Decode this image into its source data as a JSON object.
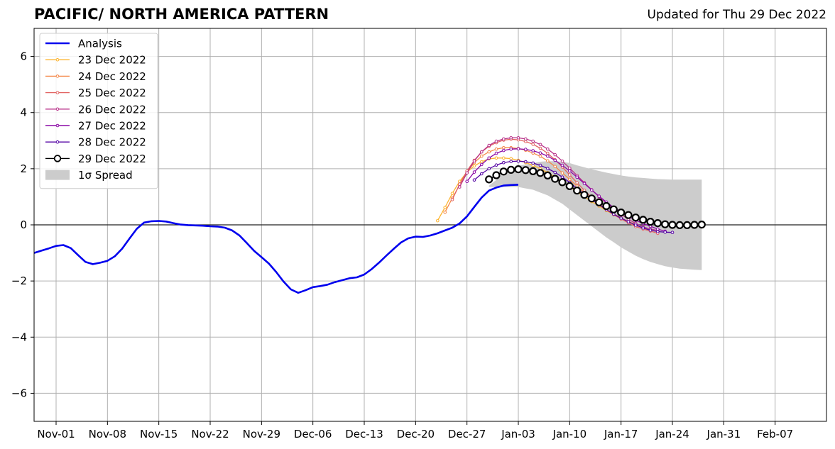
{
  "chart_data": {
    "type": "line",
    "title": "PACIFIC/ NORTH AMERICA PATTERN",
    "subtitle": "Updated for Thu 29 Dec 2022",
    "xlabel": "",
    "ylabel": "",
    "xlim": [
      "2022-10-29",
      "2023-02-14"
    ],
    "ylim": [
      -7,
      7
    ],
    "yticks": [
      -6,
      -4,
      -2,
      0,
      2,
      4,
      6
    ],
    "ytick_labels": [
      "−6",
      "−4",
      "−2",
      "0",
      "2",
      "4",
      "6"
    ],
    "xticks": [
      "2022-11-01",
      "2022-11-08",
      "2022-11-15",
      "2022-11-22",
      "2022-11-29",
      "2022-12-06",
      "2022-12-13",
      "2022-12-20",
      "2022-12-27",
      "2023-01-03",
      "2023-01-10",
      "2023-01-17",
      "2023-01-24",
      "2023-01-31",
      "2023-02-07"
    ],
    "xtick_labels": [
      "Nov-01",
      "Nov-08",
      "Nov-15",
      "Nov-22",
      "Nov-29",
      "Dec-06",
      "Dec-13",
      "Dec-20",
      "Dec-27",
      "Jan-03",
      "Jan-10",
      "Jan-17",
      "Jan-24",
      "Jan-31",
      "Feb-07"
    ],
    "grid": true,
    "legend_position": "top-left",
    "zero_line": 0,
    "analysis": {
      "name": "Analysis",
      "color": "#0000ee",
      "start": "2022-10-29",
      "values": [
        -1.0,
        -0.92,
        -0.84,
        -0.75,
        -0.72,
        -0.83,
        -1.08,
        -1.32,
        -1.4,
        -1.35,
        -1.28,
        -1.12,
        -0.85,
        -0.49,
        -0.14,
        0.08,
        0.13,
        0.14,
        0.12,
        0.06,
        0.01,
        -0.01,
        -0.02,
        -0.03,
        -0.05,
        -0.06,
        -0.1,
        -0.2,
        -0.38,
        -0.65,
        -0.93,
        -1.15,
        -1.38,
        -1.68,
        -2.02,
        -2.3,
        -2.42,
        -2.33,
        -2.22,
        -2.18,
        -2.13,
        -2.04,
        -1.97,
        -1.9,
        -1.87,
        -1.77,
        -1.58,
        -1.35,
        -1.1,
        -0.86,
        -0.63,
        -0.48,
        -0.42,
        -0.43,
        -0.38,
        -0.3,
        -0.2,
        -0.1,
        0.05,
        0.3,
        0.64,
        0.97,
        1.22,
        1.33,
        1.4,
        1.42,
        1.43
      ]
    },
    "forecasts": [
      {
        "name": "23 Dec 2022",
        "color": "#fdb42f",
        "start": "2022-12-23",
        "values": [
          0.15,
          0.62,
          1.12,
          1.55,
          1.88,
          2.1,
          2.25,
          2.35,
          2.38,
          2.38,
          2.36,
          2.3,
          2.22,
          2.12,
          2.0,
          1.86,
          1.7,
          1.53,
          1.36,
          1.18,
          1.0,
          0.83,
          0.67,
          0.51,
          0.36,
          0.22,
          0.1
        ]
      },
      {
        "name": "24 Dec 2022",
        "color": "#f48849",
        "start": "2022-12-24",
        "values": [
          0.45,
          0.95,
          1.42,
          1.88,
          2.22,
          2.45,
          2.6,
          2.7,
          2.75,
          2.75,
          2.72,
          2.66,
          2.56,
          2.44,
          2.28,
          2.08,
          1.85,
          1.62,
          1.38,
          1.15,
          0.93,
          0.73,
          0.55,
          0.39,
          0.25,
          0.12,
          0.02
        ]
      },
      {
        "name": "25 Dec 2022",
        "color": "#e16462",
        "start": "2022-12-25",
        "values": [
          0.9,
          1.45,
          1.92,
          2.3,
          2.6,
          2.8,
          2.93,
          3.02,
          3.05,
          3.03,
          2.97,
          2.87,
          2.73,
          2.55,
          2.32,
          2.06,
          1.78,
          1.5,
          1.23,
          0.98,
          0.75,
          0.55,
          0.37,
          0.21,
          0.07,
          -0.06,
          -0.15,
          -0.22,
          -0.3
        ]
      },
      {
        "name": "26 Dec 2022",
        "color": "#b83289",
        "start": "2022-12-26",
        "values": [
          1.35,
          1.85,
          2.28,
          2.6,
          2.83,
          2.98,
          3.06,
          3.1,
          3.1,
          3.06,
          2.98,
          2.86,
          2.7,
          2.5,
          2.27,
          2.02,
          1.76,
          1.5,
          1.25,
          1.0,
          0.78,
          0.57,
          0.38,
          0.2,
          0.05,
          -0.07,
          -0.15,
          -0.2
        ]
      },
      {
        "name": "27 Dec 2022",
        "color": "#8b0aa5",
        "start": "2022-12-27",
        "values": [
          1.55,
          1.88,
          2.15,
          2.38,
          2.55,
          2.65,
          2.7,
          2.71,
          2.69,
          2.64,
          2.56,
          2.45,
          2.3,
          2.12,
          1.92,
          1.7,
          1.47,
          1.24,
          1.02,
          0.81,
          0.62,
          0.45,
          0.3,
          0.16,
          0.05,
          -0.05,
          -0.15,
          -0.23
        ]
      },
      {
        "name": "28 Dec 2022",
        "color": "#5302a3",
        "start": "2022-12-28",
        "values": [
          1.6,
          1.82,
          2.0,
          2.13,
          2.22,
          2.26,
          2.27,
          2.25,
          2.2,
          2.12,
          2.01,
          1.87,
          1.7,
          1.51,
          1.3,
          1.1,
          0.9,
          0.71,
          0.54,
          0.38,
          0.24,
          0.11,
          -0.01,
          -0.11,
          -0.19,
          -0.24,
          -0.26,
          -0.27
        ]
      },
      {
        "name": "29 Dec 2022",
        "color": "#000000",
        "start": "2022-12-30",
        "values": [
          1.62,
          1.77,
          1.9,
          1.96,
          1.98,
          1.95,
          1.91,
          1.85,
          1.76,
          1.64,
          1.52,
          1.38,
          1.22,
          1.07,
          0.94,
          0.8,
          0.67,
          0.55,
          0.44,
          0.35,
          0.26,
          0.18,
          0.11,
          0.06,
          0.02,
          0.0,
          -0.01,
          -0.01,
          0.0,
          0.01
        ]
      }
    ],
    "spread": {
      "name": "1σ Spread",
      "color": "#cccccc",
      "start": "2022-12-30",
      "upper": [
        1.4,
        1.6,
        1.85,
        2.0,
        2.1,
        2.15,
        2.2,
        2.25,
        2.27,
        2.27,
        2.25,
        2.2,
        2.12,
        2.05,
        1.98,
        1.92,
        1.86,
        1.81,
        1.76,
        1.72,
        1.69,
        1.67,
        1.65,
        1.63,
        1.62,
        1.61,
        1.61,
        1.61,
        1.61,
        1.61
      ],
      "lower": [
        1.35,
        1.35,
        1.35,
        1.35,
        1.35,
        1.3,
        1.25,
        1.15,
        1.05,
        0.9,
        0.75,
        0.55,
        0.35,
        0.15,
        -0.05,
        -0.25,
        -0.45,
        -0.62,
        -0.8,
        -0.95,
        -1.1,
        -1.22,
        -1.32,
        -1.4,
        -1.47,
        -1.52,
        -1.56,
        -1.58,
        -1.6,
        -1.61
      ]
    }
  }
}
